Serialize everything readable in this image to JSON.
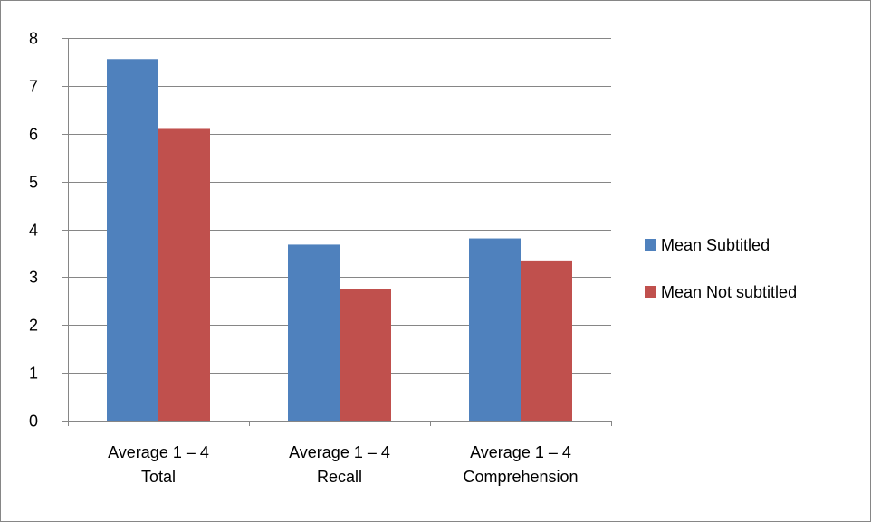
{
  "chart_data": {
    "type": "bar",
    "categories": [
      [
        "Average 1 – 4",
        "Total"
      ],
      [
        "Average 1 – 4",
        "Recall"
      ],
      [
        "Average 1 – 4",
        "Comprehension"
      ]
    ],
    "series": [
      {
        "name": "Mean Subtitled",
        "values": [
          7.56,
          3.68,
          3.81
        ],
        "color": "#4f81bd"
      },
      {
        "name": "Mean Not subtitled",
        "values": [
          6.1,
          2.75,
          3.35
        ],
        "color": "#c0504d"
      }
    ],
    "ylim": [
      0,
      8
    ],
    "yticks": [
      "0",
      "1",
      "2",
      "3",
      "4",
      "5",
      "6",
      "7",
      "8"
    ],
    "grid": true,
    "legend": "right"
  }
}
